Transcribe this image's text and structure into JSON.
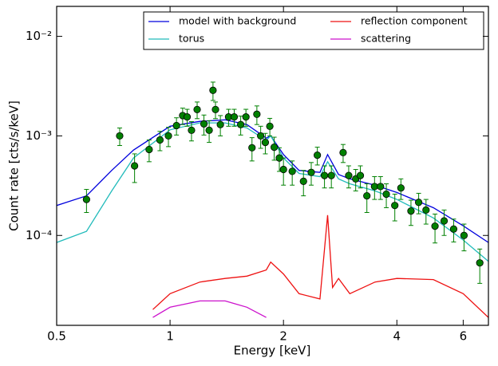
{
  "chart_data": {
    "type": "line",
    "xlabel": "Energy [keV]",
    "ylabel": "Count rate [cts/s/keV]",
    "xscale": "log",
    "yscale": "log",
    "xlim": [
      0.5,
      7
    ],
    "ylim": [
      1.25e-05,
      0.02
    ],
    "xticks": [
      0.5,
      1,
      2,
      4,
      6
    ],
    "yticks": [
      {
        "value": 0.0001,
        "label": "10⁻⁴"
      },
      {
        "value": 0.001,
        "label": "10⁻³"
      },
      {
        "value": 0.01,
        "label": "10⁻²"
      }
    ],
    "legend": "upper right",
    "series": [
      {
        "name": "model with background",
        "color": "#0000dd",
        "x": [
          0.5,
          0.6,
          0.7,
          0.8,
          1.0,
          1.2,
          1.4,
          1.6,
          1.8,
          1.85,
          2.0,
          2.2,
          2.5,
          2.62,
          2.8,
          3.0,
          3.5,
          4,
          5,
          6,
          7
        ],
        "values": [
          0.0002,
          0.00025,
          0.00045,
          0.00072,
          0.00125,
          0.0014,
          0.00145,
          0.0013,
          0.00095,
          0.001,
          0.00065,
          0.00045,
          0.00043,
          0.00065,
          0.00041,
          0.00037,
          0.00032,
          0.00027,
          0.00019,
          0.000125,
          8.5e-05
        ]
      },
      {
        "name": "reflection component",
        "color": "#ee1111",
        "x": [
          0.9,
          1.0,
          1.2,
          1.4,
          1.6,
          1.8,
          1.85,
          2.0,
          2.2,
          2.5,
          2.62,
          2.7,
          2.8,
          3.0,
          3.5,
          4,
          5,
          6,
          7
        ],
        "values": [
          1.8e-05,
          2.6e-05,
          3.4e-05,
          3.7e-05,
          3.9e-05,
          4.5e-05,
          5.4e-05,
          4.1e-05,
          2.6e-05,
          2.3e-05,
          0.00016,
          3e-05,
          3.7e-05,
          2.6e-05,
          3.4e-05,
          3.7e-05,
          3.6e-05,
          2.6e-05,
          1.5e-05
        ]
      },
      {
        "name": "torus",
        "color": "#22bbbb",
        "x": [
          0.5,
          0.6,
          0.7,
          0.8,
          1.0,
          1.2,
          1.4,
          1.6,
          1.8,
          1.85,
          2.0,
          2.2,
          2.5,
          2.62,
          2.8,
          3.0,
          3.5,
          4,
          5,
          6,
          7
        ],
        "values": [
          8.5e-05,
          0.00011,
          0.00028,
          0.0006,
          0.00115,
          0.00135,
          0.00135,
          0.0012,
          0.0009,
          0.001,
          0.0006,
          0.00042,
          0.00039,
          0.00055,
          0.00037,
          0.00033,
          0.00028,
          0.00023,
          0.00015,
          9e-05,
          5.5e-05
        ]
      },
      {
        "name": "scattering",
        "color": "#cc11cc",
        "x": [
          0.9,
          1.0,
          1.2,
          1.4,
          1.6,
          1.8
        ],
        "values": [
          1.5e-05,
          1.9e-05,
          2.2e-05,
          2.2e-05,
          1.9e-05,
          1.5e-05
        ]
      }
    ],
    "points": {
      "color": "#008000",
      "x": [
        0.6,
        0.735,
        0.805,
        0.88,
        0.94,
        0.99,
        1.04,
        1.08,
        1.11,
        1.14,
        1.18,
        1.23,
        1.27,
        1.3,
        1.32,
        1.36,
        1.43,
        1.48,
        1.54,
        1.59,
        1.65,
        1.7,
        1.74,
        1.79,
        1.84,
        1.89,
        1.95,
        2.0,
        2.11,
        2.26,
        2.37,
        2.46,
        2.57,
        2.68,
        2.88,
        2.98,
        3.11,
        3.2,
        3.33,
        3.49,
        3.62,
        3.75,
        3.95,
        4.1,
        4.36,
        4.57,
        4.78,
        5.05,
        5.34,
        5.66,
        6.03,
        6.64
      ],
      "values": [
        0.00023,
        0.001,
        0.0005,
        0.00073,
        0.00091,
        0.001,
        0.00127,
        0.0016,
        0.00155,
        0.00114,
        0.00184,
        0.00132,
        0.00114,
        0.00287,
        0.00184,
        0.0013,
        0.00155,
        0.00155,
        0.0013,
        0.00155,
        0.00076,
        0.00165,
        0.001,
        0.00086,
        0.00125,
        0.00077,
        0.0006,
        0.00046,
        0.00044,
        0.00035,
        0.00043,
        0.00064,
        0.0004,
        0.0004,
        0.00068,
        0.0004,
        0.00037,
        0.0004,
        0.00025,
        0.00031,
        0.00031,
        0.00026,
        0.0002,
        0.0003,
        0.000176,
        0.000215,
        0.00018,
        0.000124,
        0.00014,
        0.000116,
        0.0001,
        5.3e-05
      ],
      "yerr": [
        6e-05,
        0.0002,
        0.00016,
        0.00018,
        0.0002,
        0.00022,
        0.00025,
        0.0003,
        0.0003,
        0.00025,
        0.00035,
        0.0003,
        0.00028,
        0.0006,
        0.00035,
        0.0003,
        0.0003,
        0.0003,
        0.00028,
        0.0003,
        0.0002,
        0.00035,
        0.00025,
        0.0002,
        0.00025,
        0.0002,
        0.00016,
        0.00014,
        0.00012,
        0.0001,
        0.00011,
        0.00013,
        0.0001,
        0.0001,
        0.00014,
        0.0001,
        9e-05,
        0.0001,
        8e-05,
        8e-05,
        8e-05,
        7e-05,
        6e-05,
        7e-05,
        5e-05,
        5e-05,
        5e-05,
        4e-05,
        4e-05,
        3e-05,
        3e-05,
        2e-05
      ]
    }
  }
}
